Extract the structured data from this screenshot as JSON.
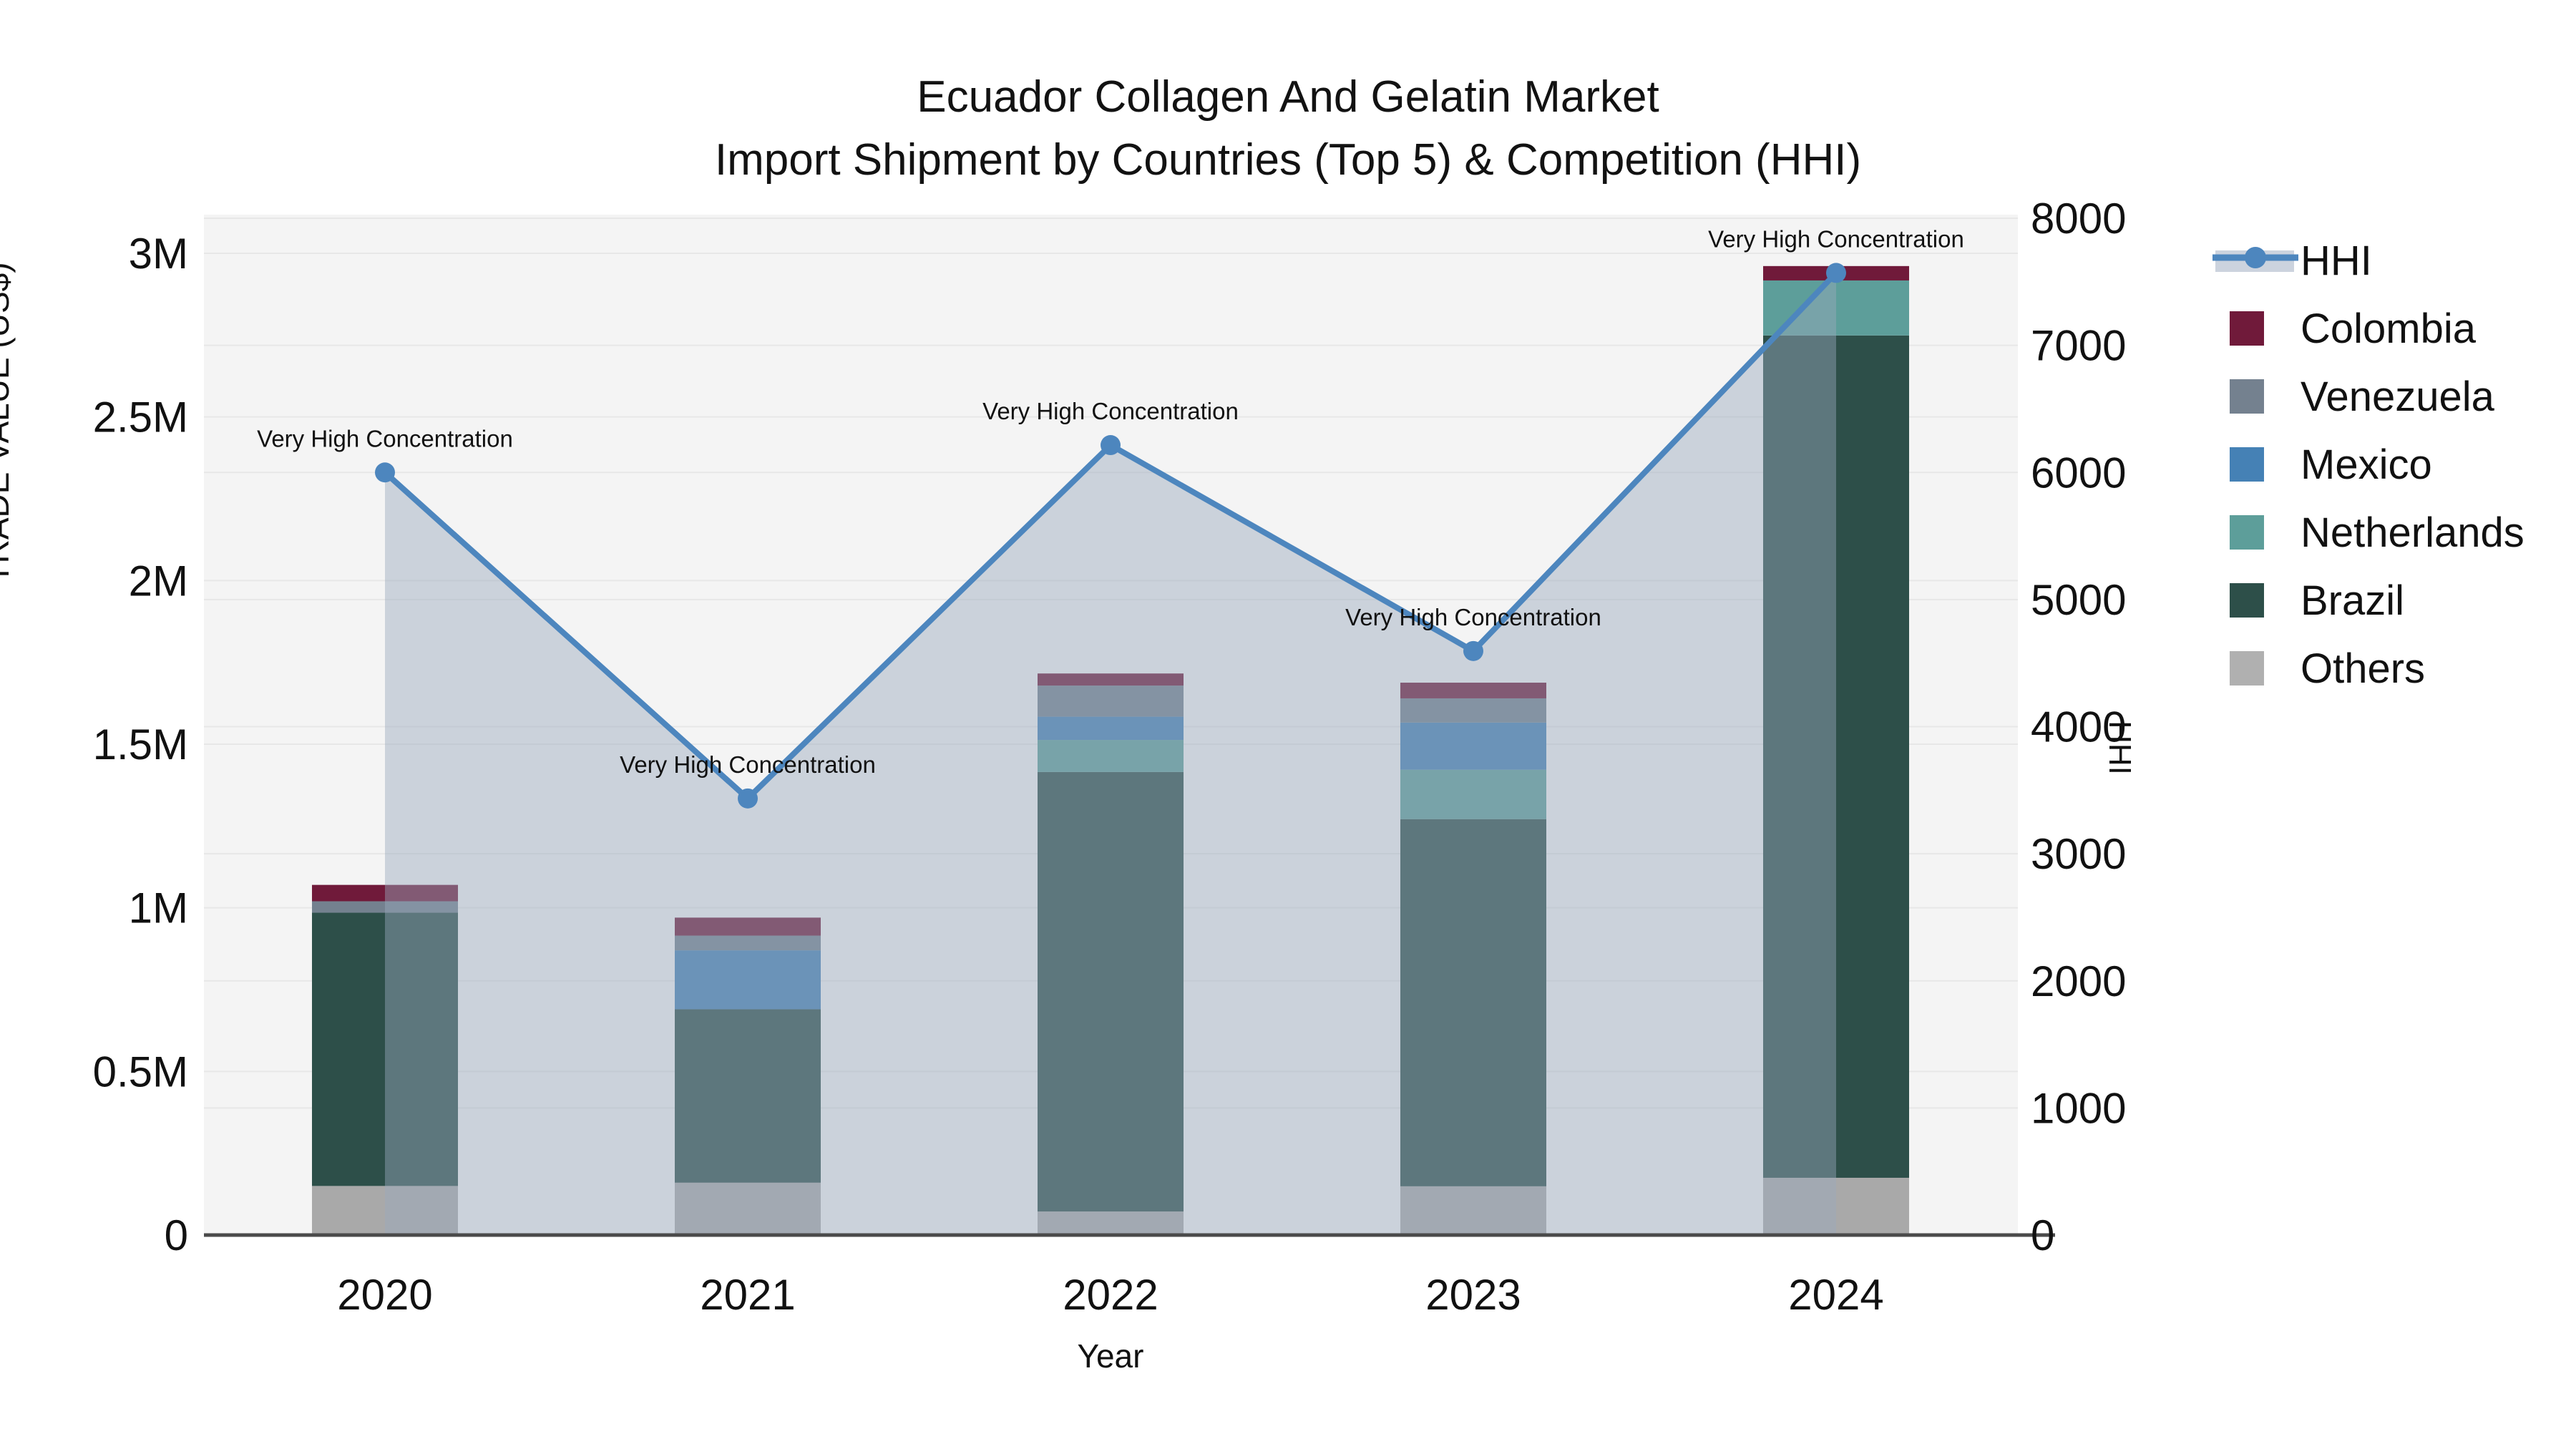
{
  "title": {
    "line1": "Ecuador Collagen And Gelatin Market",
    "line2": "Import Shipment by Countries (Top 5) & Competition (HHI)"
  },
  "axes": {
    "y_left": {
      "label": "TRADE VALUE (US$)",
      "ticks": [
        "3M",
        "2.5M",
        "2M",
        "1.5M",
        "1M",
        "0.5M",
        "0"
      ]
    },
    "y_right": {
      "label": "HHI",
      "ticks": [
        "8000",
        "7000",
        "6000",
        "5000",
        "4000",
        "3000",
        "2000",
        "1000",
        "0"
      ]
    },
    "x": {
      "label": "Year",
      "categories": [
        "2020",
        "2021",
        "2022",
        "2023",
        "2024"
      ]
    }
  },
  "legend": [
    {
      "label": "HHI",
      "color": "#4d86be",
      "type": "line"
    },
    {
      "label": "Colombia",
      "color": "#701a3a",
      "type": "box"
    },
    {
      "label": "Venezuela",
      "color": "#74818f",
      "type": "box"
    },
    {
      "label": "Mexico",
      "color": "#4581b5",
      "type": "box"
    },
    {
      "label": "Netherlands",
      "color": "#5d9e9a",
      "type": "box"
    },
    {
      "label": "Brazil",
      "color": "#2d4f49",
      "type": "box"
    },
    {
      "label": "Others",
      "color": "#b0b0b0",
      "type": "box"
    }
  ],
  "colors": {
    "plot_bg": "#f4f4f4",
    "grid": "#e7e7e7",
    "axis_line": "#4a4a4a",
    "hhi_line": "#4d86be",
    "hhi_area": "#9aa8bc",
    "legend_band": "#ccd3de",
    "annotation_text": "#1a1a1a"
  },
  "chart_data": {
    "type": "bar+line",
    "title": "Ecuador Collagen And Gelatin Market — Import Shipment by Countries (Top 5) & Competition (HHI)",
    "categories": [
      "2020",
      "2021",
      "2022",
      "2023",
      "2024"
    ],
    "bar_axis": {
      "label": "TRADE VALUE (US$)",
      "ylim": [
        0,
        3120000
      ],
      "tick_values": [
        3000000,
        2500000,
        2000000,
        1500000,
        1000000,
        500000,
        0
      ],
      "tick_labels": [
        "3M",
        "2.5M",
        "2M",
        "1.5M",
        "1M",
        "0.5M",
        "0"
      ]
    },
    "line_axis": {
      "label": "HHI",
      "ylim": [
        0,
        8000
      ],
      "tick_values": [
        8000,
        7000,
        6000,
        5000,
        4000,
        3000,
        2000,
        1000,
        0
      ]
    },
    "stack_order_bottom_to_top": [
      "Others",
      "Brazil",
      "Netherlands",
      "Mexico",
      "Venezuela",
      "Colombia"
    ],
    "series": [
      {
        "name": "Others",
        "color": "#a9a9a9",
        "values": [
          150000,
          160000,
          72000,
          149000,
          175000
        ]
      },
      {
        "name": "Brazil",
        "color": "#2d4f49",
        "values": [
          835000,
          530000,
          1343000,
          1122000,
          2574000
        ]
      },
      {
        "name": "Netherlands",
        "color": "#5d9e9a",
        "values": [
          0,
          0,
          98000,
          151000,
          168000
        ]
      },
      {
        "name": "Mexico",
        "color": "#4581b5",
        "values": [
          0,
          180000,
          71000,
          144000,
          0
        ]
      },
      {
        "name": "Venezuela",
        "color": "#74818f",
        "values": [
          35000,
          45000,
          95000,
          74000,
          0
        ]
      },
      {
        "name": "Colombia",
        "color": "#701a3a",
        "values": [
          50000,
          55000,
          37000,
          48000,
          44000
        ]
      }
    ],
    "bar_totals": [
      1070000,
      970000,
      1716000,
      1688000,
      2961000
    ],
    "line": {
      "name": "HHI",
      "color": "#4d86be",
      "values": [
        6000,
        3435,
        6215,
        4595,
        7570
      ],
      "area_fill": true
    },
    "annotations": [
      {
        "category": "2020",
        "text": "Very High Concentration"
      },
      {
        "category": "2021",
        "text": "Very High Concentration"
      },
      {
        "category": "2022",
        "text": "Very High Concentration"
      },
      {
        "category": "2023",
        "text": "Very High Concentration"
      },
      {
        "category": "2024",
        "text": "Very High Concentration"
      }
    ],
    "xlabel": "Year",
    "grid": true,
    "legend_position": "right"
  }
}
